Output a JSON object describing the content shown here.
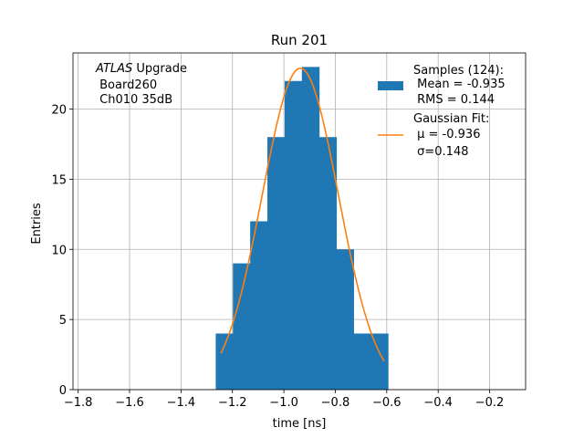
{
  "chart_data": {
    "type": "bar",
    "title": "Run 201",
    "xlabel": "time [ns]",
    "ylabel": "Entries",
    "xlim": [
      -1.82,
      -0.06
    ],
    "ylim": [
      0,
      24
    ],
    "grid": true,
    "x_ticks": [
      -1.8,
      -1.6,
      -1.4,
      -1.2,
      -1.0,
      -0.8,
      -0.6,
      -0.4,
      -0.2
    ],
    "x_tick_labels": [
      "−1.8",
      "−1.6",
      "−1.4",
      "−1.2",
      "−1.0",
      "−0.8",
      "−0.6",
      "−0.4",
      "−0.2"
    ],
    "y_ticks": [
      0,
      5,
      10,
      15,
      20
    ],
    "y_tick_labels": [
      "0",
      "5",
      "10",
      "15",
      "20"
    ],
    "histogram": {
      "name": "Samples",
      "color": "#1f77b4",
      "bin_edges": [
        -1.265,
        -1.198,
        -1.131,
        -1.064,
        -0.997,
        -0.93,
        -0.863,
        -0.796,
        -0.729,
        -0.662,
        -0.595
      ],
      "counts": [
        4,
        9,
        12,
        18,
        22,
        23,
        18,
        10,
        4,
        4
      ]
    },
    "fit": {
      "name": "Gaussian Fit",
      "color": "#ff7f0e",
      "mu": -0.936,
      "sigma": 0.148,
      "amplitude": 22.9,
      "x_range": [
        -1.245,
        -0.61
      ]
    },
    "legend": {
      "position": "top-right",
      "samples_lines": [
        "Samples (124):",
        " Mean = -0.935",
        " RMS = 0.144"
      ],
      "fit_lines": [
        "Gaussian Fit:",
        " μ = -0.936",
        " σ=0.148"
      ]
    },
    "annotation": {
      "position": "top-left",
      "atlas": "ATLAS",
      "upgrade": " Upgrade",
      "line2": " Board260",
      "line3": " Ch010 35dB"
    }
  }
}
